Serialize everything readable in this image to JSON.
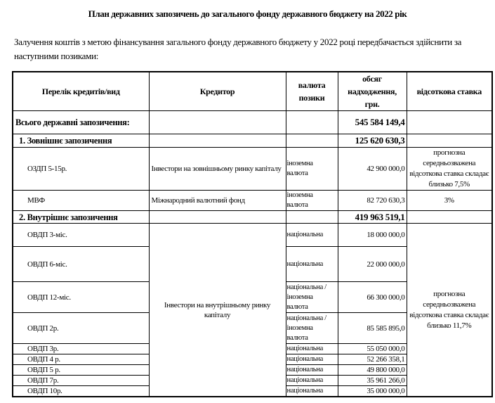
{
  "title": "План державних запозичень до загального фонду державного бюджету на 2022 рік",
  "intro": "Залучення коштів з метою фінансування загального фонду державного бюджету у 2022 році передбачається здійснити за наступними позиками:",
  "headers": [
    "Перелік кредитів/вид",
    "Кредитор",
    "валюта позики",
    "обсяг надходження, грн.",
    "відсоткова ставка"
  ],
  "total": {
    "label": "Всього державні запозичення:",
    "amount": "545 584 149,4"
  },
  "external": {
    "label": "1. Зовнішнє запозичення",
    "amount": "125 620 630,3",
    "rows": [
      {
        "name": "ОЗДП 5-15р.",
        "creditor": "Інвестори на зовнішньому ринку капіталу",
        "currency": "іноземна валюта",
        "amount": "42 900 000,0",
        "rate": "прогнозна середньозважена відсоткова ставка складає близько 7,5%"
      },
      {
        "name": "МВФ",
        "creditor": "Міжнародний валютний фонд",
        "currency": "іноземна валюта",
        "amount": "82 720 630,3",
        "rate": "3%"
      }
    ]
  },
  "internal": {
    "label": "2. Внутрішнє запозичення",
    "amount": "419 963 519,1",
    "creditor": "Інвестори на внутрішньому ринку капіталу",
    "rate": "прогнозна середньозважена відсоткова ставка складає близько 11,7%",
    "rows": [
      {
        "name": "ОВДП 3-міс.",
        "currency": "національна",
        "amount": "18 000 000,0"
      },
      {
        "name": "ОВДП 6-міс.",
        "currency": "національна",
        "amount": "22 000 000,0"
      },
      {
        "name": "ОВДП 12-міс.",
        "currency": "національна / іноземна валюта",
        "amount": "66 300 000,0"
      },
      {
        "name": "ОВДП 2р.",
        "currency": "національна / іноземна валюта",
        "amount": "85 585 895,0"
      },
      {
        "name": "ОВДП 3р.",
        "currency": "національна",
        "amount": "55 050 000,0"
      },
      {
        "name": "ОВДП 4 р.",
        "currency": "національна",
        "amount": "52 266 358,1"
      },
      {
        "name": "ОВДП 5 р.",
        "currency": "національна",
        "amount": "49 800 000,0"
      },
      {
        "name": "ОВДП 7р.",
        "currency": "національна",
        "amount": "35 961 266,0"
      },
      {
        "name": "ОВДП 10р.",
        "currency": "національна",
        "amount": "35 000 000,0"
      }
    ]
  }
}
